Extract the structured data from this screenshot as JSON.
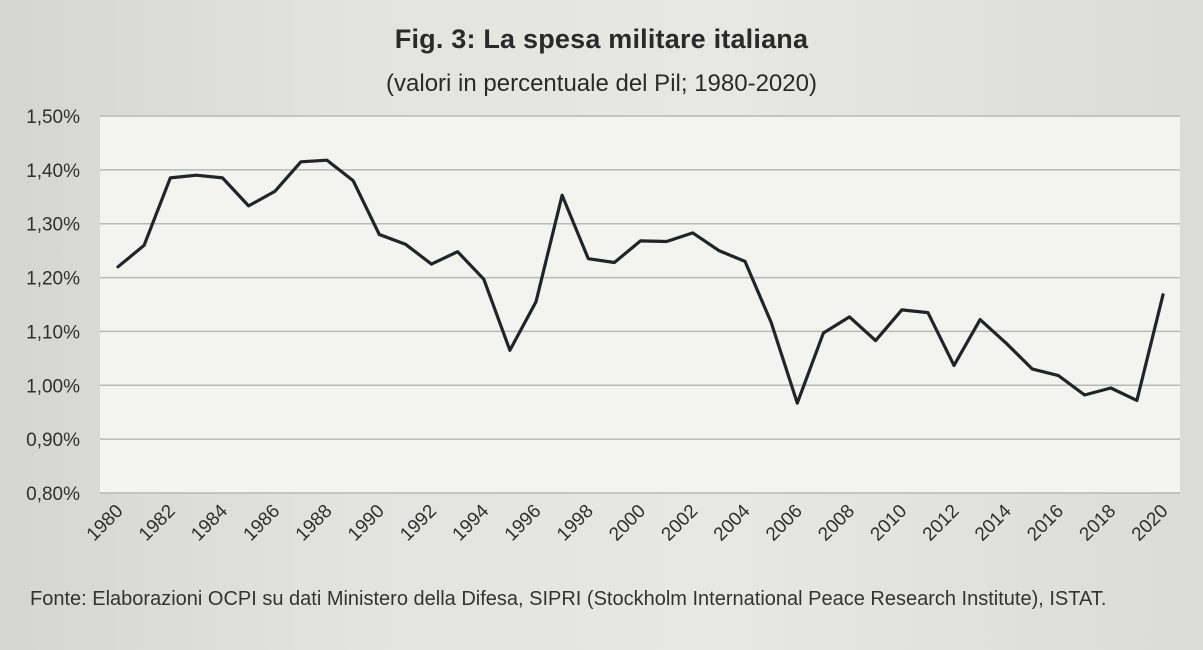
{
  "chart_data": {
    "type": "line",
    "title": "Fig. 3: La spesa militare italiana",
    "subtitle": "(valori in percentuale del Pil; 1980-2020)",
    "xlabel": "",
    "ylabel": "",
    "ylim": [
      0.8,
      1.5
    ],
    "yticks": [
      0.8,
      0.9,
      1.0,
      1.1,
      1.2,
      1.3,
      1.4,
      1.5
    ],
    "ytick_labels": [
      "0,80%",
      "0,90%",
      "1,00%",
      "1,10%",
      "1,20%",
      "1,30%",
      "1,40%",
      "1,50%"
    ],
    "xticks": [
      "1980",
      "1982",
      "1984",
      "1986",
      "1988",
      "1990",
      "1992",
      "1994",
      "1996",
      "1998",
      "2000",
      "2002",
      "2004",
      "2006",
      "2008",
      "2010",
      "2012",
      "2014",
      "2016",
      "2018",
      "2020"
    ],
    "grid": true,
    "legend": "none",
    "x": [
      1980,
      1981,
      1982,
      1983,
      1984,
      1985,
      1986,
      1987,
      1988,
      1989,
      1990,
      1991,
      1992,
      1993,
      1994,
      1995,
      1996,
      1997,
      1998,
      1999,
      2000,
      2001,
      2002,
      2003,
      2004,
      2005,
      2006,
      2007,
      2008,
      2009,
      2010,
      2011,
      2012,
      2013,
      2014,
      2015,
      2016,
      2017,
      2018,
      2019,
      2020
    ],
    "series": [
      {
        "values": [
          1.22,
          1.26,
          1.385,
          1.39,
          1.385,
          1.333,
          1.36,
          1.415,
          1.418,
          1.38,
          1.28,
          1.262,
          1.225,
          1.248,
          1.197,
          1.065,
          1.155,
          1.353,
          1.235,
          1.228,
          1.268,
          1.267,
          1.283,
          1.25,
          1.23,
          1.117,
          0.967,
          1.097,
          1.127,
          1.083,
          1.14,
          1.135,
          1.037,
          1.122,
          1.078,
          1.03,
          1.018,
          0.982,
          0.995,
          0.972,
          1.168
        ]
      }
    ],
    "colors": {
      "line": "#1f2528",
      "grid": "#b9b9b4",
      "plot_bg": "#f3f3ef"
    }
  },
  "source_note": "Fonte: Elaborazioni OCPI su dati Ministero della Difesa, SIPRI (Stockholm International Peace Research Institute), ISTAT."
}
